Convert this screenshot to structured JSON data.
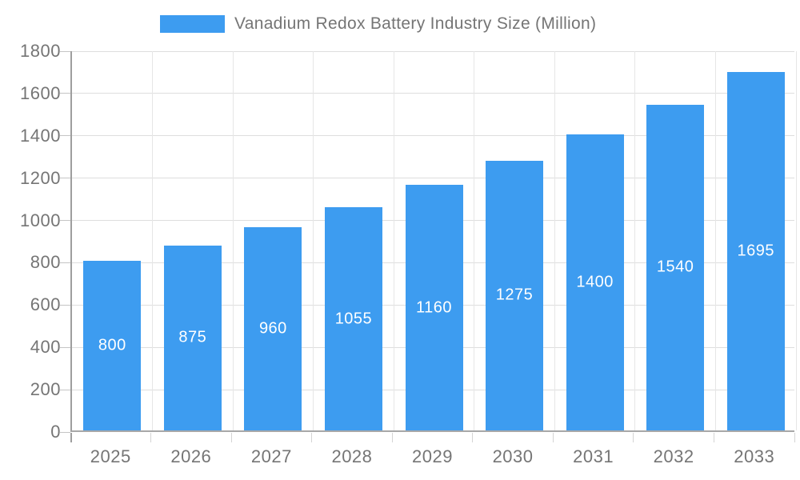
{
  "legend": {
    "label": "Vanadium Redox Battery Industry Size (Million)"
  },
  "colors": {
    "bar": "#3d9cf0",
    "axis_line": "#9e9e9e",
    "grid_line": "#e0e0e0",
    "tick_label": "#757575",
    "value_label": "#ffffff",
    "background": "#ffffff"
  },
  "chart_data": {
    "type": "bar",
    "title": "Vanadium Redox Battery Industry Size (Million)",
    "categories": [
      "2025",
      "2026",
      "2027",
      "2028",
      "2029",
      "2030",
      "2031",
      "2032",
      "2033"
    ],
    "values": [
      800,
      875,
      960,
      1055,
      1160,
      1275,
      1400,
      1540,
      1695
    ],
    "series_name": "Vanadium Redox Battery Industry Size (Million)",
    "xlabel": "",
    "ylabel": "",
    "ylim": [
      0,
      1800
    ],
    "y_ticks": [
      0,
      200,
      400,
      600,
      800,
      1000,
      1200,
      1400,
      1600,
      1800
    ],
    "grid": "horizontal and vertical",
    "legend_position": "top",
    "value_label_position": "inside-center"
  }
}
